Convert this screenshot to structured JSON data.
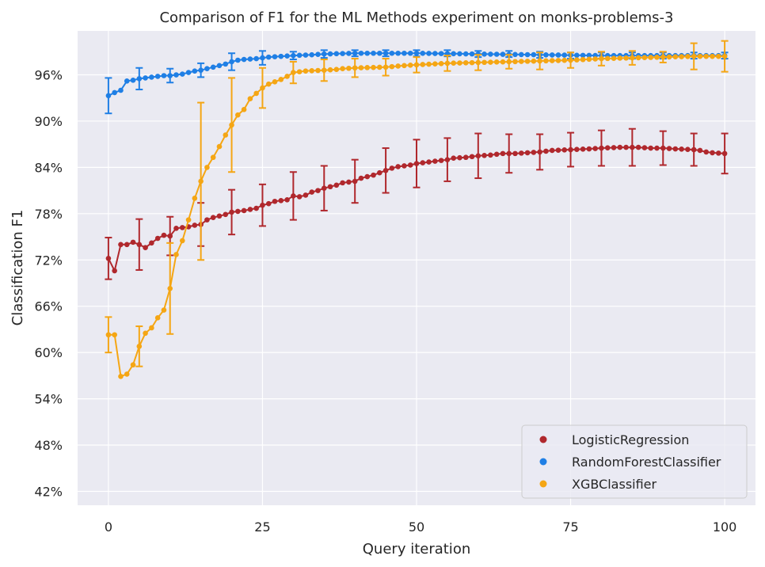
{
  "chart_data": {
    "type": "line",
    "title": "Comparison of F1 for the ML Methods experiment on monks-problems-3",
    "xlabel": "Query iteration",
    "ylabel": "Classification F1",
    "xlim": [
      -5,
      105
    ],
    "ylim": [
      40.2,
      101.7
    ],
    "xticks": [
      0,
      25,
      50,
      75,
      100
    ],
    "xtick_labels": [
      "0",
      "25",
      "50",
      "75",
      "100"
    ],
    "yticks": [
      42,
      48,
      54,
      60,
      66,
      72,
      78,
      84,
      90,
      96
    ],
    "ytick_labels": [
      "42%",
      "48%",
      "54%",
      "60%",
      "66%",
      "72%",
      "78%",
      "84%",
      "90%",
      "96%"
    ],
    "grid": true,
    "legend_position": "lower-right",
    "background": "#eaeaf2",
    "series": [
      {
        "name": "LogisticRegression",
        "color": "#b0282d",
        "anchors": [
          [
            0,
            72.2
          ],
          [
            1,
            70.6
          ],
          [
            2,
            74.0
          ],
          [
            3,
            74.0
          ],
          [
            4,
            74.3
          ],
          [
            5,
            74.0
          ],
          [
            6,
            73.6
          ],
          [
            7,
            74.2
          ],
          [
            8,
            74.8
          ],
          [
            9,
            75.2
          ],
          [
            10,
            75.1
          ],
          [
            11,
            76.1
          ],
          [
            12,
            76.2
          ],
          [
            13,
            76.3
          ],
          [
            14,
            76.5
          ],
          [
            15,
            76.6
          ],
          [
            16,
            77.2
          ],
          [
            17,
            77.5
          ],
          [
            18,
            77.7
          ],
          [
            19,
            77.9
          ],
          [
            20,
            78.2
          ],
          [
            22,
            78.4
          ],
          [
            24,
            78.7
          ],
          [
            25,
            79.1
          ],
          [
            26,
            79.3
          ],
          [
            27,
            79.6
          ],
          [
            28,
            79.7
          ],
          [
            29,
            79.8
          ],
          [
            30,
            80.3
          ],
          [
            31,
            80.2
          ],
          [
            32,
            80.4
          ],
          [
            33,
            80.8
          ],
          [
            34,
            81.0
          ],
          [
            35,
            81.3
          ],
          [
            36,
            81.5
          ],
          [
            37,
            81.7
          ],
          [
            38,
            82.0
          ],
          [
            40,
            82.2
          ],
          [
            41,
            82.6
          ],
          [
            42,
            82.8
          ],
          [
            43,
            83.0
          ],
          [
            44,
            83.3
          ],
          [
            45,
            83.6
          ],
          [
            46,
            83.9
          ],
          [
            47,
            84.1
          ],
          [
            48,
            84.2
          ],
          [
            49,
            84.3
          ],
          [
            50,
            84.5
          ],
          [
            52,
            84.7
          ],
          [
            54,
            84.9
          ],
          [
            55,
            85.0
          ],
          [
            56,
            85.2
          ],
          [
            58,
            85.3
          ],
          [
            60,
            85.5
          ],
          [
            62,
            85.6
          ],
          [
            64,
            85.8
          ],
          [
            66,
            85.8
          ],
          [
            68,
            85.9
          ],
          [
            70,
            86.0
          ],
          [
            72,
            86.2
          ],
          [
            75,
            86.3
          ],
          [
            78,
            86.4
          ],
          [
            80,
            86.5
          ],
          [
            83,
            86.6
          ],
          [
            85,
            86.6
          ],
          [
            86,
            86.6
          ],
          [
            88,
            86.5
          ],
          [
            90,
            86.5
          ],
          [
            92,
            86.4
          ],
          [
            95,
            86.3
          ],
          [
            96,
            86.2
          ],
          [
            97,
            86.0
          ],
          [
            98,
            85.9
          ],
          [
            100,
            85.8
          ]
        ],
        "error_bars": [
          [
            0,
            72.2,
            2.7
          ],
          [
            5,
            74.0,
            3.3
          ],
          [
            10,
            75.1,
            2.5
          ],
          [
            15,
            76.6,
            2.8
          ],
          [
            20,
            78.2,
            2.9
          ],
          [
            25,
            79.1,
            2.7
          ],
          [
            30,
            80.3,
            3.1
          ],
          [
            35,
            81.3,
            2.9
          ],
          [
            40,
            82.2,
            2.8
          ],
          [
            45,
            83.6,
            2.9
          ],
          [
            50,
            84.5,
            3.1
          ],
          [
            55,
            85.0,
            2.8
          ],
          [
            60,
            85.5,
            2.9
          ],
          [
            65,
            85.8,
            2.5
          ],
          [
            70,
            86.0,
            2.3
          ],
          [
            75,
            86.3,
            2.2
          ],
          [
            80,
            86.5,
            2.3
          ],
          [
            85,
            86.6,
            2.4
          ],
          [
            90,
            86.5,
            2.2
          ],
          [
            95,
            86.3,
            2.1
          ],
          [
            100,
            85.8,
            2.6
          ]
        ]
      },
      {
        "name": "RandomForestClassifier",
        "color": "#1f7fe5",
        "anchors": [
          [
            0,
            93.3
          ],
          [
            1,
            93.7
          ],
          [
            2,
            94.0
          ],
          [
            3,
            95.2
          ],
          [
            4,
            95.3
          ],
          [
            5,
            95.5
          ],
          [
            6,
            95.6
          ],
          [
            7,
            95.7
          ],
          [
            8,
            95.8
          ],
          [
            9,
            95.9
          ],
          [
            10,
            95.9
          ],
          [
            11,
            96.0
          ],
          [
            12,
            96.1
          ],
          [
            13,
            96.3
          ],
          [
            14,
            96.5
          ],
          [
            15,
            96.6
          ],
          [
            16,
            96.8
          ],
          [
            17,
            97.0
          ],
          [
            18,
            97.2
          ],
          [
            19,
            97.4
          ],
          [
            20,
            97.7
          ],
          [
            21,
            97.9
          ],
          [
            22,
            98.0
          ],
          [
            24,
            98.1
          ],
          [
            25,
            98.2
          ],
          [
            26,
            98.3
          ],
          [
            28,
            98.4
          ],
          [
            30,
            98.5
          ],
          [
            33,
            98.6
          ],
          [
            35,
            98.7
          ],
          [
            40,
            98.8
          ],
          [
            45,
            98.8
          ],
          [
            50,
            98.8
          ],
          [
            60,
            98.7
          ],
          [
            70,
            98.6
          ],
          [
            80,
            98.5
          ],
          [
            90,
            98.5
          ],
          [
            100,
            98.5
          ]
        ],
        "error_bars": [
          [
            0,
            93.3,
            2.3
          ],
          [
            5,
            95.5,
            1.4
          ],
          [
            10,
            95.9,
            0.9
          ],
          [
            15,
            96.6,
            0.9
          ],
          [
            20,
            97.7,
            1.1
          ],
          [
            25,
            98.2,
            0.9
          ],
          [
            30,
            98.5,
            0.5
          ],
          [
            35,
            98.7,
            0.5
          ],
          [
            40,
            98.8,
            0.4
          ],
          [
            45,
            98.8,
            0.4
          ],
          [
            50,
            98.8,
            0.4
          ],
          [
            55,
            98.8,
            0.4
          ],
          [
            60,
            98.7,
            0.4
          ],
          [
            65,
            98.7,
            0.4
          ],
          [
            70,
            98.6,
            0.4
          ],
          [
            75,
            98.5,
            0.4
          ],
          [
            80,
            98.5,
            0.4
          ],
          [
            85,
            98.5,
            0.4
          ],
          [
            90,
            98.5,
            0.4
          ],
          [
            95,
            98.5,
            0.4
          ],
          [
            100,
            98.5,
            0.4
          ]
        ]
      },
      {
        "name": "XGBClassifier",
        "color": "#f5a614",
        "anchors": [
          [
            0,
            62.3
          ],
          [
            1,
            62.3
          ],
          [
            2,
            56.9
          ],
          [
            3,
            57.2
          ],
          [
            4,
            58.4
          ],
          [
            5,
            60.8
          ],
          [
            6,
            62.5
          ],
          [
            7,
            63.2
          ],
          [
            8,
            64.5
          ],
          [
            9,
            65.5
          ],
          [
            10,
            68.3
          ],
          [
            11,
            72.7
          ],
          [
            12,
            74.5
          ],
          [
            13,
            77.2
          ],
          [
            14,
            80.0
          ],
          [
            15,
            82.2
          ],
          [
            16,
            84.0
          ],
          [
            17,
            85.3
          ],
          [
            18,
            86.7
          ],
          [
            19,
            88.2
          ],
          [
            20,
            89.5
          ],
          [
            21,
            90.8
          ],
          [
            22,
            91.5
          ],
          [
            23,
            92.9
          ],
          [
            24,
            93.6
          ],
          [
            25,
            94.3
          ],
          [
            26,
            94.8
          ],
          [
            27,
            95.1
          ],
          [
            28,
            95.4
          ],
          [
            29,
            95.8
          ],
          [
            30,
            96.3
          ],
          [
            31,
            96.4
          ],
          [
            32,
            96.5
          ],
          [
            35,
            96.6
          ],
          [
            37,
            96.7
          ],
          [
            38,
            96.8
          ],
          [
            40,
            96.9
          ],
          [
            45,
            97.0
          ],
          [
            48,
            97.2
          ],
          [
            50,
            97.3
          ],
          [
            55,
            97.5
          ],
          [
            60,
            97.6
          ],
          [
            65,
            97.7
          ],
          [
            70,
            97.8
          ],
          [
            75,
            97.9
          ],
          [
            80,
            98.1
          ],
          [
            85,
            98.2
          ],
          [
            90,
            98.3
          ],
          [
            95,
            98.4
          ],
          [
            100,
            98.4
          ]
        ],
        "error_bars": [
          [
            0,
            62.3,
            2.3
          ],
          [
            5,
            60.8,
            2.6
          ],
          [
            10,
            68.3,
            5.9
          ],
          [
            15,
            82.2,
            10.2
          ],
          [
            20,
            89.5,
            6.1
          ],
          [
            25,
            94.3,
            2.6
          ],
          [
            30,
            96.3,
            1.4
          ],
          [
            35,
            96.6,
            1.4
          ],
          [
            40,
            96.9,
            1.2
          ],
          [
            45,
            97.0,
            1.1
          ],
          [
            50,
            97.3,
            1.0
          ],
          [
            55,
            97.5,
            1.0
          ],
          [
            60,
            97.6,
            1.0
          ],
          [
            65,
            97.7,
            0.9
          ],
          [
            70,
            97.8,
            1.1
          ],
          [
            75,
            97.9,
            1.0
          ],
          [
            80,
            98.1,
            0.9
          ],
          [
            85,
            98.2,
            0.9
          ],
          [
            90,
            98.3,
            0.7
          ],
          [
            95,
            98.4,
            1.7
          ],
          [
            100,
            98.4,
            2.0
          ]
        ]
      }
    ]
  }
}
